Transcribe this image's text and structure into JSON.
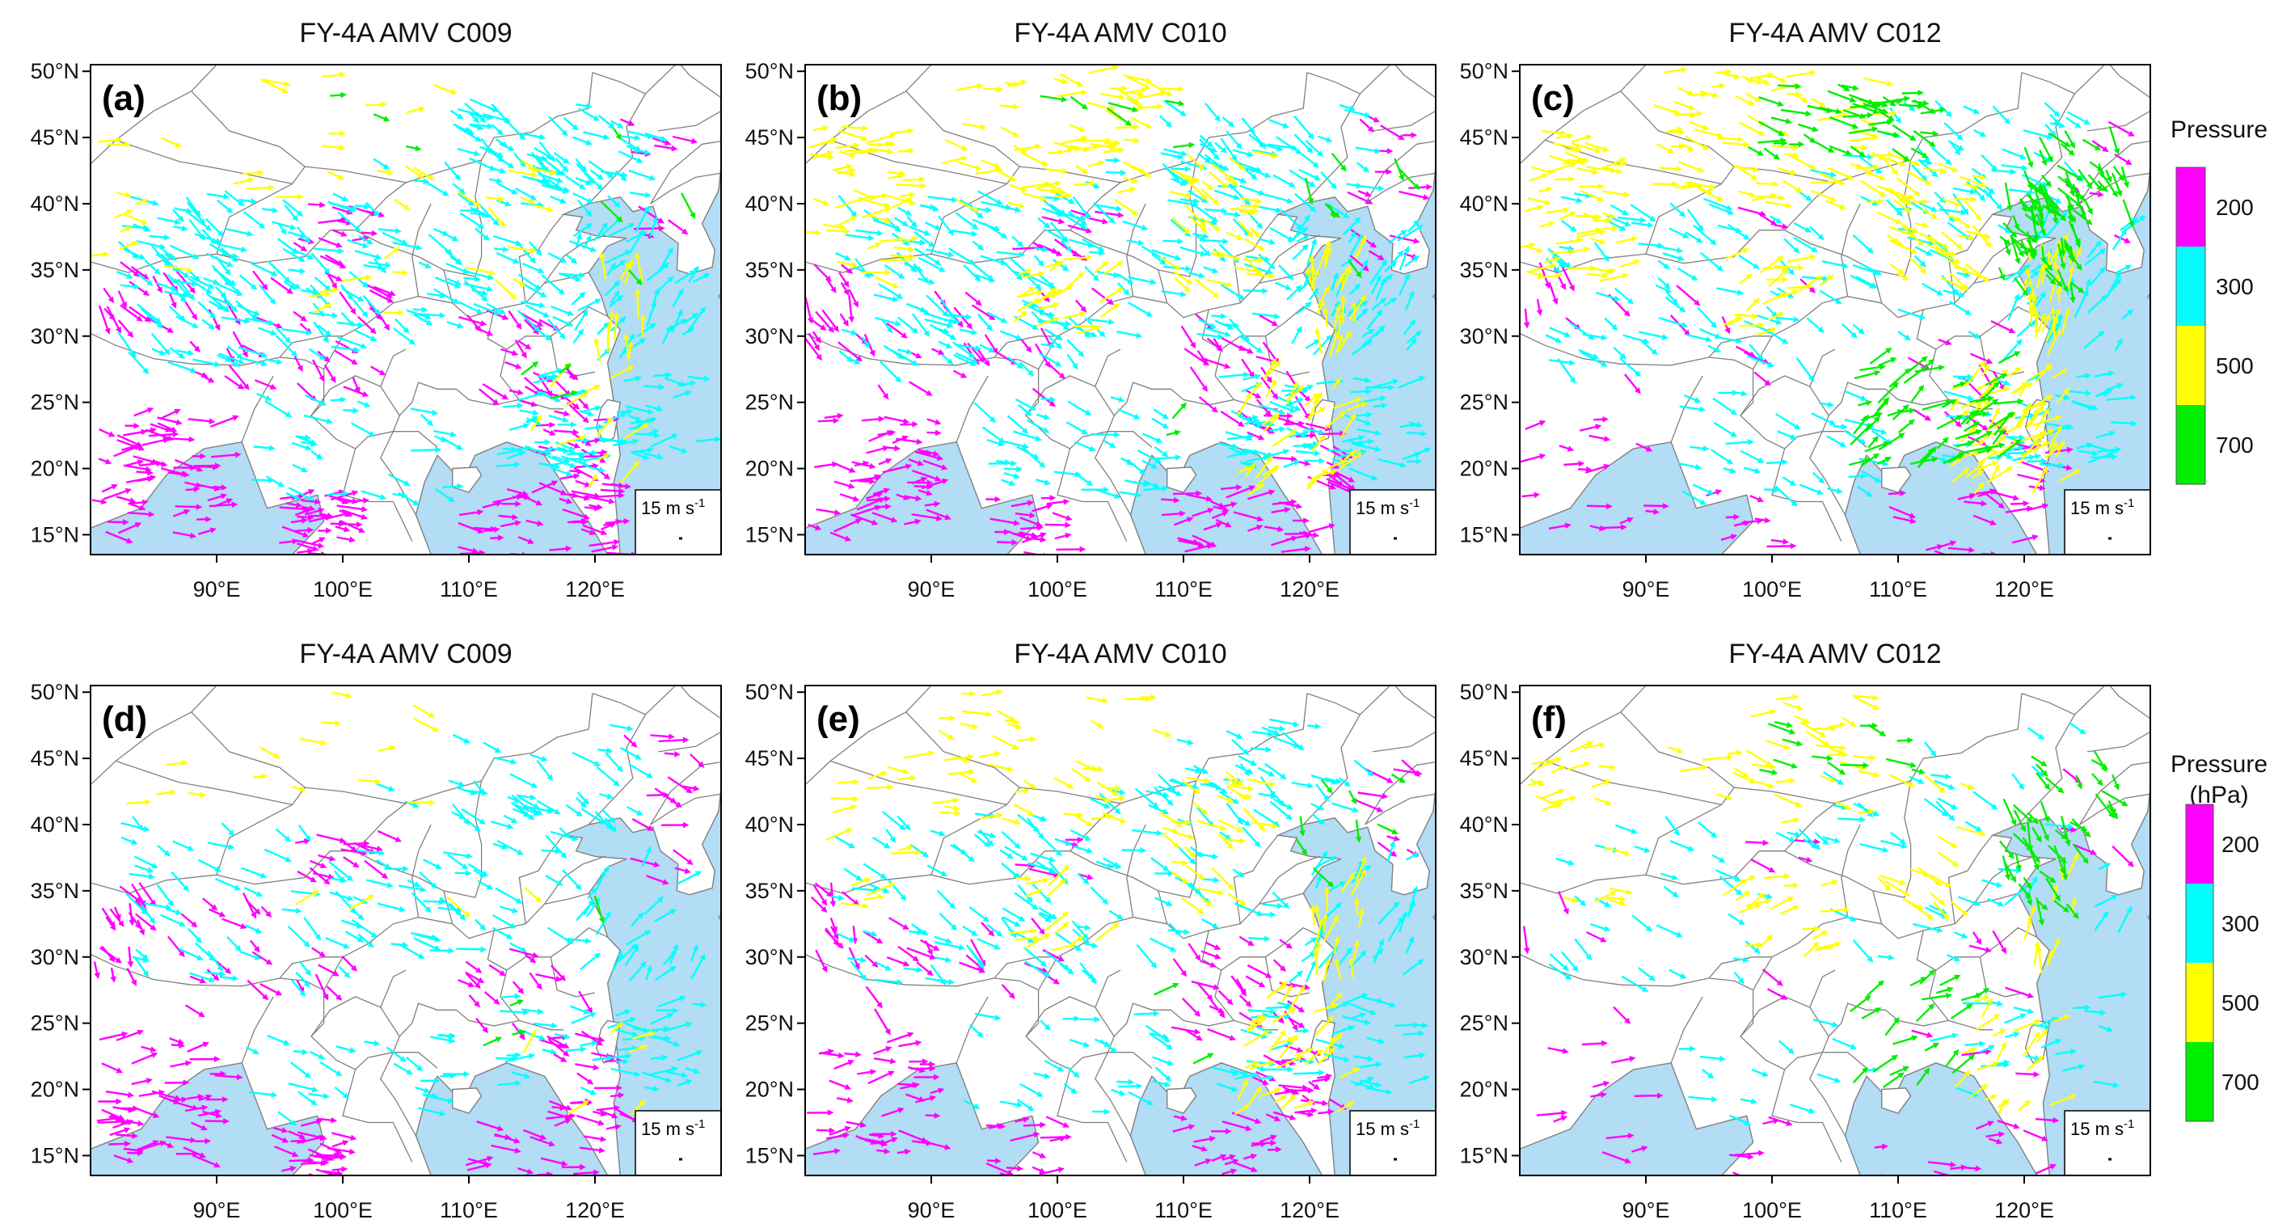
{
  "figure": {
    "panels": [
      {
        "letter": "(a)",
        "title": "FY-4A AMV  C009",
        "channel": "C009",
        "density": "dense",
        "counts": {
          "200": 260,
          "300": 420,
          "500": 70,
          "700": 10
        }
      },
      {
        "letter": "(b)",
        "title": "FY-4A AMV  C010",
        "channel": "C010",
        "density": "dense",
        "counts": {
          "200": 220,
          "300": 400,
          "500": 230,
          "700": 15
        }
      },
      {
        "letter": "(c)",
        "title": "FY-4A AMV  C012",
        "channel": "C012",
        "density": "dense",
        "counts": {
          "200": 90,
          "300": 270,
          "500": 290,
          "700": 190
        }
      },
      {
        "letter": "(d)",
        "title": "FY-4A AMV  C009",
        "channel": "C009",
        "density": "thinned",
        "counts": {
          "200": 210,
          "300": 240,
          "500": 25,
          "700": 4
        }
      },
      {
        "letter": "(e)",
        "title": "FY-4A AMV  C010",
        "channel": "C010",
        "density": "thinned",
        "counts": {
          "200": 170,
          "300": 260,
          "500": 150,
          "700": 10
        }
      },
      {
        "letter": "(f)",
        "title": "FY-4A AMV  C012",
        "channel": "C012",
        "density": "thinned",
        "counts": {
          "200": 50,
          "300": 110,
          "500": 120,
          "700": 80
        }
      }
    ],
    "lat_ticks": [
      "50°N",
      "45°N",
      "40°N",
      "35°N",
      "30°N",
      "25°N",
      "20°N",
      "15°N"
    ],
    "lon_ticks": [
      "90°E",
      "100°E",
      "110°E",
      "120°E"
    ],
    "lat_range": [
      13.5,
      50.5
    ],
    "lon_range": [
      80,
      130
    ],
    "scale_vector": {
      "label": "15 m s",
      "superscript": "-1"
    },
    "legends": [
      {
        "title_lines": [
          "Pressure"
        ]
      },
      {
        "title_lines": [
          "Pressure",
          "(hPa)"
        ]
      }
    ],
    "pressure_levels": [
      {
        "level": "200",
        "color": "#ff00ff"
      },
      {
        "level": "300",
        "color": "#00ffff"
      },
      {
        "level": "500",
        "color": "#ffff00"
      },
      {
        "level": "700",
        "color": "#00ee00"
      }
    ],
    "colors": {
      "ocean": "#b3dcf5",
      "land": "#ffffff",
      "border": "#808080",
      "frame": "#000000"
    }
  }
}
